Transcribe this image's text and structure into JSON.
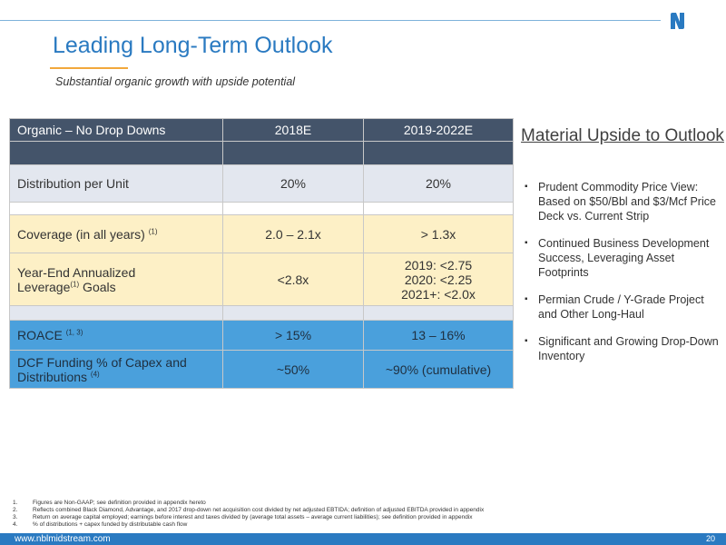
{
  "header": {
    "title": "Leading Long-Term Outlook",
    "subtitle": "Substantial organic growth with upside potential"
  },
  "table": {
    "columns": [
      "Organic – No Drop Downs",
      "2018E",
      "2019-2022E"
    ],
    "rows": {
      "distribution": {
        "label": "Distribution per Unit",
        "v2018": "20%",
        "v2019": "20%"
      },
      "coverage": {
        "label": "Coverage (in all years)",
        "sup": "(1)",
        "v2018": "2.0 – 2.1x",
        "v2019": "> 1.3x"
      },
      "leverage": {
        "label_a": "Year-End Annualized",
        "label_b": "Leverage",
        "sup": "(1)",
        "label_c": " Goals",
        "v2018": "<2.8x",
        "v2019_lines": [
          "2019: <2.75",
          "2020: <2.25",
          "2021+: <2.0x"
        ]
      },
      "roace": {
        "label": "ROACE",
        "sup": "(1, 3)",
        "v2018": "> 15%",
        "v2019": "13 – 16%"
      },
      "dcf": {
        "label_a": "DCF Funding % of Capex and",
        "label_b": "Distributions",
        "sup": "(4)",
        "v2018": "~50%",
        "v2019": "~90% (cumulative)"
      }
    }
  },
  "sidebar": {
    "title": "Material Upside to Outlook",
    "bullets": [
      "Prudent Commodity Price View: Based on $50/Bbl and $3/Mcf Price Deck vs. Current Strip",
      "Continued Business Development Success, Leveraging Asset Footprints",
      "Permian Crude / Y-Grade Project and Other Long-Haul",
      "Significant and Growing Drop-Down Inventory"
    ]
  },
  "footnotes": [
    {
      "num": "1.",
      "text": "Figures are Non-GAAP; see definition provided in appendix hereto"
    },
    {
      "num": "2.",
      "text": "Reflects  combined Black Diamond, Advantage, and 2017 drop-down net acquisition cost divided by net adjusted EBTIDA; definition of adjusted EBITDA provided in appendix"
    },
    {
      "num": "3.",
      "text": "Return on average capital employed; earnings before interest and taxes divided by (average total assets – average current liabilities); see definition provided in appendix"
    },
    {
      "num": "4.",
      "text": "% of distributions + capex funded by distributable cash flow"
    }
  ],
  "footer": {
    "url": "www.nblmidstream.com",
    "page": "20"
  },
  "colors": {
    "accent_blue": "#2a7ac1",
    "header_slate": "#44546a",
    "row_grey": "#e3e7ef",
    "row_yellow": "#fdf0c6",
    "row_blue": "#4aa0dc",
    "underline_orange": "#f2a83b"
  },
  "icons": {
    "logo": "nbl-logo-icon",
    "bullet": "square-bullet-icon"
  }
}
